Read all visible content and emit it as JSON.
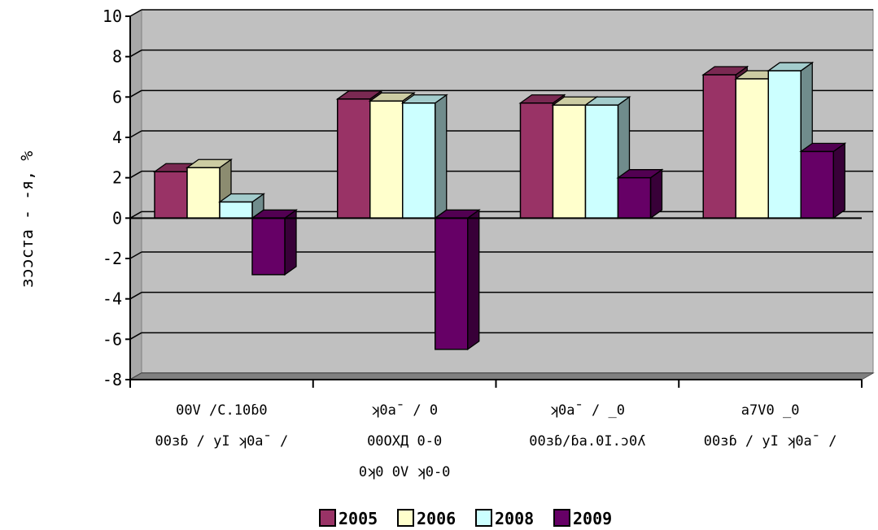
{
  "chart_data": {
    "type": "bar",
    "style": "3d-clustered-column",
    "ylabel": "ɜɔɔcтa - -я, %",
    "ylim": [
      -8,
      10
    ],
    "yticks": [
      -8,
      -6,
      -4,
      -2,
      0,
      2,
      4,
      6,
      8,
      10
    ],
    "ytick_labels": [
      "-8",
      "-6",
      "-4",
      "-2",
      "0",
      "2",
      "4",
      "6",
      "8",
      "10"
    ],
    "grid": true,
    "legend_position": "bottom",
    "categories": [
      [
        "00V /C.10ɓ0",
        "00ɜɓ / yI ʞ0a¯ /"
      ],
      [
        "ʞ0a¯ / 0",
        "00OXД 0-0",
        "0ʞ0 0V ʞ0-0"
      ],
      [
        "ʞ0a¯ / _0",
        "00ɜɓ/ɓa.0I.ɔ0ʎ"
      ],
      [
        "a7V0 _0",
        "00ɜɓ / yI ʞ0a¯ /"
      ]
    ],
    "series": [
      {
        "name": "2005",
        "color": "#993366",
        "values": [
          2.3,
          5.9,
          5.7,
          7.1
        ]
      },
      {
        "name": "2006",
        "color": "#FFFFCC",
        "values": [
          2.5,
          5.8,
          5.6,
          6.9
        ]
      },
      {
        "name": "2008",
        "color": "#CCFFFF",
        "values": [
          0.8,
          5.7,
          5.6,
          7.3
        ]
      },
      {
        "name": "2009",
        "color": "#660066",
        "values": [
          -2.8,
          -6.5,
          2.0,
          3.3
        ]
      }
    ],
    "colors": {
      "plot_wall": "#C0C0C0",
      "floor": "#808080",
      "gridline": "#000000"
    }
  }
}
